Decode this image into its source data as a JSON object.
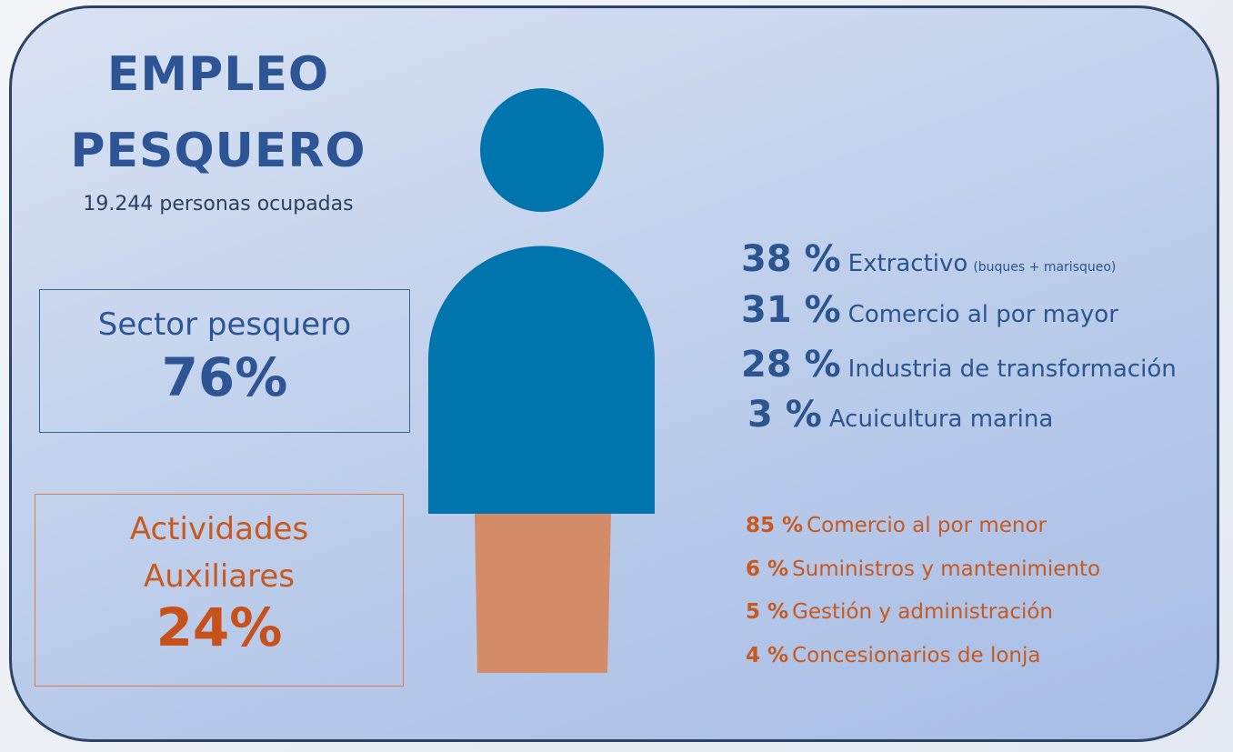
{
  "title_lines": [
    "EMPLEO",
    "PESQUERO"
  ],
  "subtitle": "19.244 personas ocupadas",
  "sector": {
    "label": "Sector pesquero",
    "value": "76%"
  },
  "auxiliary": {
    "label_lines": [
      "Actividades",
      "Auxiliares"
    ],
    "value": "24%"
  },
  "sector_breakdown": [
    {
      "value": "38 %",
      "label": "Extractivo",
      "note": "(buques + marisqueo)"
    },
    {
      "value": "31 %",
      "label": "Comercio al por mayor"
    },
    {
      "value": "28 %",
      "label": "Industria de transformación"
    },
    {
      "value": "3 %",
      "label": "Acuicultura marina"
    }
  ],
  "auxiliary_breakdown": [
    {
      "value": "85 %",
      "label": "Comercio al por menor"
    },
    {
      "value": "6 %",
      "label": "Suministros y mantenimiento"
    },
    {
      "value": "5 %",
      "label": "Gestión y administración"
    },
    {
      "value": "4 %",
      "label": "Concesionarios de lonja"
    }
  ]
}
